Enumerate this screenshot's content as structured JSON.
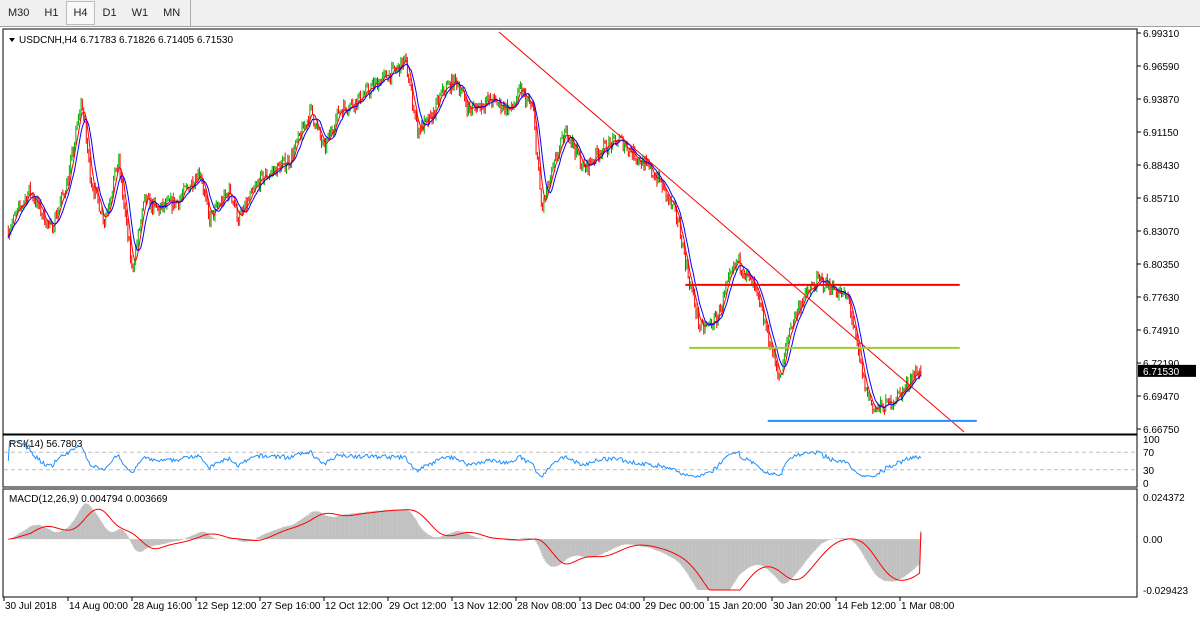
{
  "toolbar": {
    "timeframes": [
      "M30",
      "H1",
      "H4",
      "D1",
      "W1",
      "MN"
    ],
    "active": "H4"
  },
  "chart_data": [
    {
      "type": "candlestick",
      "title": "USDCNH,H4  6.71783 6.71826 6.71405 6.71530",
      "symbol": "USDCNH",
      "timeframe": "H4",
      "ohlc_last": {
        "open": 6.71783,
        "high": 6.71826,
        "low": 6.71405,
        "close": 6.7153
      },
      "current_price": "6.71530",
      "colors": {
        "up": "#00b000",
        "down": "#ff0000",
        "ma_fast": "#ff0000",
        "ma_slow": "#0000ff"
      },
      "ylim": [
        6.6675,
        6.9931
      ],
      "y_ticks": [
        "6.99310",
        "6.96590",
        "6.93870",
        "6.91150",
        "6.88430",
        "6.85710",
        "6.83070",
        "6.80350",
        "6.77630",
        "6.74910",
        "6.72190",
        "6.69470",
        "6.66750"
      ],
      "x_ticks": [
        {
          "label": "30 Jul 2018",
          "date": "2018-07-30"
        },
        {
          "label": "14 Aug 00:00",
          "date": "2018-08-14"
        },
        {
          "label": "28 Aug 16:00",
          "date": "2018-08-28"
        },
        {
          "label": "12 Sep 12:00",
          "date": "2018-09-12"
        },
        {
          "label": "27 Sep 16:00",
          "date": "2018-09-27"
        },
        {
          "label": "12 Oct 12:00",
          "date": "2018-10-12"
        },
        {
          "label": "29 Oct 12:00",
          "date": "2018-10-29"
        },
        {
          "label": "13 Nov 12:00",
          "date": "2018-11-13"
        },
        {
          "label": "28 Nov 08:00",
          "date": "2018-11-28"
        },
        {
          "label": "13 Dec 04:00",
          "date": "2018-12-13"
        },
        {
          "label": "29 Dec 00:00",
          "date": "2018-12-29"
        },
        {
          "label": "15 Jan 20:00",
          "date": "2019-01-15"
        },
        {
          "label": "30 Jan 20:00",
          "date": "2019-01-30"
        },
        {
          "label": "14 Feb 12:00",
          "date": "2019-02-14"
        },
        {
          "label": "1 Mar 08:00",
          "date": "2019-03-01"
        }
      ],
      "close_path": [
        [
          "2018-07-31",
          6.8312
        ],
        [
          "2018-08-05",
          6.864
        ],
        [
          "2018-08-10",
          6.8312
        ],
        [
          "2018-08-14",
          6.8723
        ],
        [
          "2018-08-17",
          6.938
        ],
        [
          "2018-08-19",
          6.8723
        ],
        [
          "2018-08-22",
          6.8394
        ],
        [
          "2018-08-25",
          6.8887
        ],
        [
          "2018-08-28",
          6.7983
        ],
        [
          "2018-08-31",
          6.8558
        ],
        [
          "2018-09-03",
          6.8476
        ],
        [
          "2018-09-08",
          6.8558
        ],
        [
          "2018-09-13",
          6.8805
        ],
        [
          "2018-09-15",
          6.8394
        ],
        [
          "2018-09-20",
          6.864
        ],
        [
          "2018-09-22",
          6.8394
        ],
        [
          "2018-09-27",
          6.8723
        ],
        [
          "2018-10-04",
          6.8887
        ],
        [
          "2018-10-09",
          6.9298
        ],
        [
          "2018-10-12",
          6.8969
        ],
        [
          "2018-10-16",
          6.9298
        ],
        [
          "2018-10-21",
          6.938
        ],
        [
          "2018-10-27",
          6.9545
        ],
        [
          "2018-10-31",
          6.9627
        ],
        [
          "2018-11-02",
          6.9709
        ],
        [
          "2018-11-05",
          6.9134
        ],
        [
          "2018-11-08",
          6.9216
        ],
        [
          "2018-11-11",
          6.9462
        ],
        [
          "2018-11-14",
          6.9545
        ],
        [
          "2018-11-17",
          6.9298
        ],
        [
          "2018-11-22",
          6.938
        ],
        [
          "2018-11-27",
          6.9298
        ],
        [
          "2018-11-29",
          6.9462
        ],
        [
          "2018-12-02",
          6.9298
        ],
        [
          "2018-12-04",
          6.8476
        ],
        [
          "2018-12-08",
          6.8969
        ],
        [
          "2018-12-10",
          6.9134
        ],
        [
          "2018-12-14",
          6.8805
        ],
        [
          "2018-12-18",
          6.8969
        ],
        [
          "2018-12-23",
          6.9051
        ],
        [
          "2018-12-28",
          6.8887
        ],
        [
          "2019-01-02",
          6.8723
        ],
        [
          "2019-01-07",
          6.8394
        ],
        [
          "2019-01-10",
          6.7901
        ],
        [
          "2019-01-13",
          6.749
        ],
        [
          "2019-01-17",
          6.7572
        ],
        [
          "2019-01-20",
          6.7901
        ],
        [
          "2019-01-22",
          6.8065
        ],
        [
          "2019-01-26",
          6.7818
        ],
        [
          "2019-01-28",
          6.7572
        ],
        [
          "2019-02-01",
          6.7079
        ],
        [
          "2019-02-03",
          6.749
        ],
        [
          "2019-02-06",
          6.7736
        ],
        [
          "2019-02-10",
          6.7901
        ],
        [
          "2019-02-14",
          6.7818
        ],
        [
          "2019-02-17",
          6.7736
        ],
        [
          "2019-02-19",
          6.7325
        ],
        [
          "2019-02-21",
          6.6996
        ],
        [
          "2019-02-23",
          6.6832
        ],
        [
          "2019-02-26",
          6.6873
        ],
        [
          "2019-03-02",
          6.6996
        ],
        [
          "2019-03-04",
          6.712
        ],
        [
          "2019-03-06",
          6.7153
        ]
      ],
      "drawn_lines": [
        {
          "kind": "trendline",
          "color": "#ff0000",
          "from": [
            "2018-11-24",
            6.9939
          ],
          "to": [
            "2019-03-16",
            6.6651
          ]
        },
        {
          "kind": "horizontal",
          "color": "#ff0000",
          "price": 6.786,
          "from": "2019-01-09",
          "to": "2019-03-15"
        },
        {
          "kind": "horizontal",
          "color": "#9acd32",
          "price": 6.7342,
          "from": "2019-01-10",
          "to": "2019-03-15"
        },
        {
          "kind": "horizontal",
          "color": "#1e90ff",
          "price": 6.6742,
          "from": "2019-01-29",
          "to": "2019-03-19"
        }
      ]
    },
    {
      "type": "line",
      "title": "RSI(14) 56.7803",
      "name": "RSI(14)",
      "last_value": 56.7803,
      "ylim": [
        0,
        100
      ],
      "levels": [
        30,
        70
      ],
      "y_ticks": [
        "100",
        "70",
        "30",
        "0"
      ],
      "color": "#1e90ff"
    },
    {
      "type": "bar",
      "title": "MACD(12,26,9) 0.004794 0.003669",
      "name": "MACD(12,26,9)",
      "macd": 0.004794,
      "signal": 0.003669,
      "ylim": [
        -0.029423,
        0.024372
      ],
      "y_ticks": [
        "0.024372",
        "0.00",
        "-0.029423"
      ],
      "histogram_color": "#c0c0c0",
      "signal_color": "#ff0000"
    }
  ]
}
